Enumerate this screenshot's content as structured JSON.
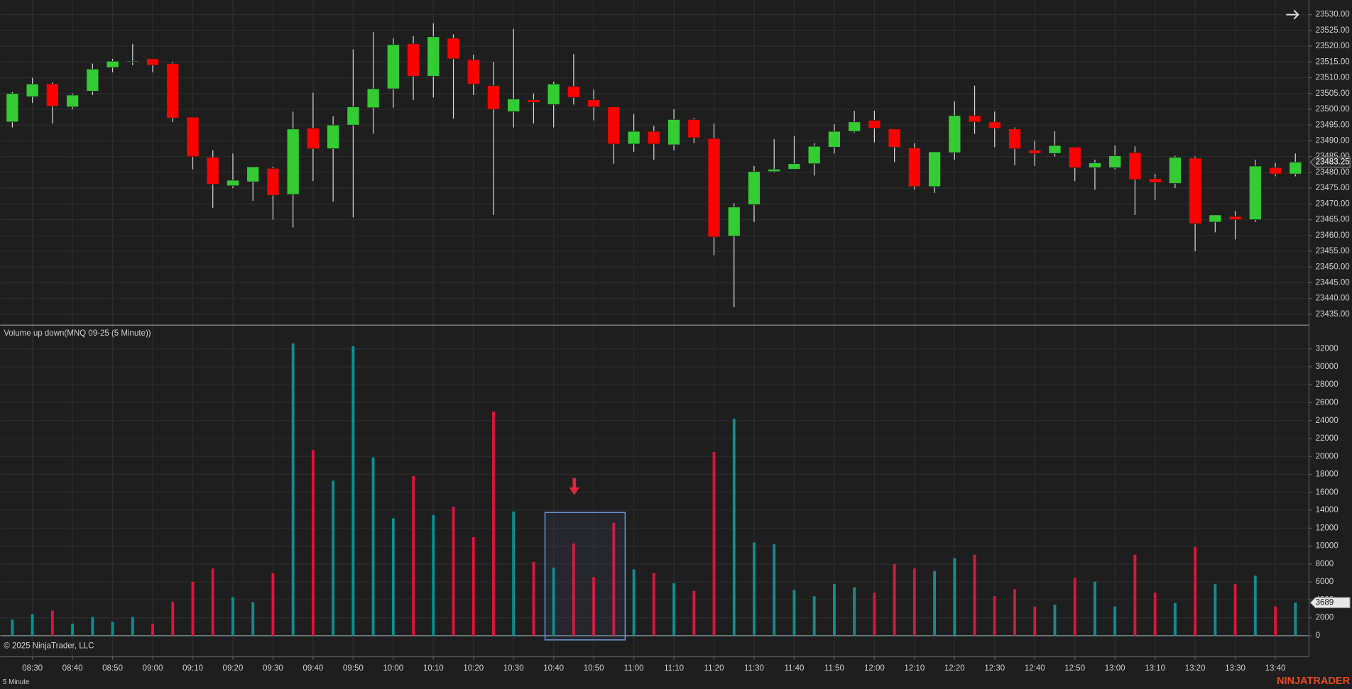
{
  "chart_data": [
    {
      "type": "candlestick",
      "categories": [
        null,
        "08:30",
        null,
        "08:40",
        null,
        "08:50",
        null,
        "09:00",
        null,
        "09:10",
        null,
        "09:20",
        null,
        "09:30",
        null,
        "09:40",
        null,
        "09:50",
        null,
        "10:00",
        null,
        "10:10",
        null,
        "10:20",
        null,
        "10:30",
        null,
        "10:40",
        null,
        "10:50",
        null,
        "11:00",
        null,
        "11:10",
        null,
        "11:20",
        null,
        "11:30",
        null,
        "11:40",
        null,
        "11:50",
        null,
        "12:00",
        null,
        "12:10",
        null,
        "12:20",
        null,
        "12:30",
        null,
        "12:40",
        null,
        "12:50",
        null,
        "13:00",
        null,
        "13:10",
        null,
        "13:20",
        null,
        "13:30",
        null,
        "13:40",
        null
      ],
      "open": [
        23496,
        23504,
        23508,
        23500.75,
        23505.75,
        23513.25,
        23515,
        23516,
        23514.5,
        23497.5,
        23484.75,
        23475.75,
        23477,
        23481.25,
        23473,
        23494,
        23487.5,
        23495,
        23500.5,
        23506.5,
        23520.75,
        23510.5,
        23522.5,
        23515.75,
        23507.5,
        23499.25,
        23503,
        23501.5,
        23507.25,
        23503,
        23500.75,
        23489,
        23493,
        23488.75,
        23496.75,
        23490.75,
        23459.75,
        23469.75,
        23480.25,
        23481,
        23482.75,
        23488,
        23493,
        23496.5,
        23493.75,
        23487.75,
        23475.5,
        23486.25,
        23498,
        23496,
        23493.75,
        23487,
        23486,
        23488,
        23481.5,
        23481.5,
        23486.25,
        23478,
        23476.5,
        23484.5,
        23464.25,
        23466,
        23465,
        23481.5,
        23479.5
      ],
      "high": [
        23505.5,
        23510,
        23508.5,
        23505,
        23514.5,
        23516,
        23520.75,
        23516,
        23515,
        23497.5,
        23487,
        23486,
        23481.75,
        23481.75,
        23499.25,
        23505.25,
        23497.75,
        23519,
        23524.5,
        23522.5,
        23523.25,
        23527.25,
        23523.75,
        23517.25,
        23515,
        23525.5,
        23505,
        23508.75,
        23517.5,
        23506.25,
        23500.75,
        23498.5,
        23494.75,
        23500,
        23497.25,
        23495.5,
        23470.25,
        23482,
        23490.5,
        23491.5,
        23489.25,
        23495.25,
        23499.5,
        23499.5,
        23493.75,
        23489.25,
        23486.5,
        23502.5,
        23507.5,
        23499.25,
        23494.25,
        23490,
        23493,
        23488,
        23484,
        23488.5,
        23488.25,
        23479.5,
        23485.25,
        23485,
        23466.5,
        23467.75,
        23484,
        23483,
        23486
      ],
      "low": [
        23494.25,
        23502,
        23495.5,
        23500,
        23504.5,
        23511.75,
        23514,
        23511.75,
        23496,
        23481,
        23468.75,
        23475,
        23471,
        23465,
        23462.5,
        23477.25,
        23470.75,
        23465.75,
        23492.25,
        23500.5,
        23503,
        23503.75,
        23497,
        23504.5,
        23466.5,
        23494.25,
        23495.5,
        23494.25,
        23501.5,
        23496.5,
        23482.75,
        23486.5,
        23484,
        23487,
        23489.25,
        23453.75,
        23437.25,
        23464.25,
        23480,
        23481,
        23479,
        23486,
        23492.5,
        23489.5,
        23483.25,
        23474.5,
        23473.5,
        23484,
        23492.25,
        23488,
        23482.25,
        23482,
        23485,
        23477.25,
        23474.5,
        23481,
        23466.5,
        23471.25,
        23475,
        23455,
        23461,
        23458.75,
        23464.25,
        23478.75,
        23478.75
      ],
      "close": [
        23505,
        23508,
        23501,
        23504.5,
        23512.75,
        23515.25,
        23515.25,
        23514,
        23497.25,
        23485,
        23476.25,
        23477.5,
        23481.75,
        23472.75,
        23493.75,
        23487.5,
        23495,
        23500.75,
        23506.5,
        23520.5,
        23510.5,
        23523,
        23516,
        23508,
        23500,
        23503.25,
        23502.25,
        23508,
        23503.75,
        23500.75,
        23489,
        23493,
        23489,
        23496.75,
        23491,
        23459.5,
        23469,
        23480.25,
        23481,
        23482.75,
        23488.25,
        23493,
        23496,
        23494,
        23488,
        23475.5,
        23486.5,
        23498,
        23496,
        23494,
        23487.5,
        23486,
        23488.5,
        23481.5,
        23483,
        23485.25,
        23477.75,
        23476.75,
        23484.75,
        23463.75,
        23466.5,
        23465,
        23482,
        23479.5,
        23483.25
      ],
      "up_color": "#33cc33",
      "down_color": "#ff0000",
      "ylim": [
        23431.7,
        23534.65
      ],
      "yticks": [
        {
          "value": 23435,
          "label": "23435.00"
        },
        {
          "value": 23440,
          "label": "23440.00"
        },
        {
          "value": 23445,
          "label": "23445.00"
        },
        {
          "value": 23450,
          "label": "23450.00"
        },
        {
          "value": 23455,
          "label": "23455.00"
        },
        {
          "value": 23460,
          "label": "23460.00"
        },
        {
          "value": 23465,
          "label": "23465.00"
        },
        {
          "value": 23470,
          "label": "23470.00"
        },
        {
          "value": 23475,
          "label": "23475.00"
        },
        {
          "value": 23480,
          "label": "23480.00"
        },
        {
          "value": 23485,
          "label": "23485.00"
        },
        {
          "value": 23490,
          "label": "23490.00"
        },
        {
          "value": 23495,
          "label": "23495.00"
        },
        {
          "value": 23500,
          "label": "23500.00"
        },
        {
          "value": 23505,
          "label": "23505.00"
        },
        {
          "value": 23510,
          "label": "23510.00"
        },
        {
          "value": 23515,
          "label": "23515.00"
        },
        {
          "value": 23520,
          "label": "23520.00"
        },
        {
          "value": 23525,
          "label": "23525.00"
        },
        {
          "value": 23530,
          "label": "23530.00"
        }
      ],
      "grid": true
    },
    {
      "type": "bar",
      "title": "Volume up down(MNQ 09-25 (5 Minute))",
      "values": [
        1800,
        2400,
        2800,
        1350,
        2100,
        1550,
        2100,
        1350,
        3800,
        6000,
        7500,
        4300,
        3750,
        7000,
        32600,
        20700,
        17300,
        32300,
        19900,
        13100,
        17800,
        13450,
        14400,
        11000,
        25000,
        13850,
        8250,
        7600,
        10300,
        6550,
        12600,
        7400,
        7000,
        5850,
        5000,
        20500,
        24200,
        10400,
        10200,
        5100,
        4400,
        5750,
        5400,
        4800,
        8000,
        7500,
        7200,
        8650,
        9050,
        4400,
        5200,
        3250,
        3450,
        6450,
        6050,
        3250,
        9050,
        4800,
        3650,
        9900,
        5750,
        5750,
        6700,
        3250,
        3689
      ],
      "up_color": "#0e8f8f",
      "down_color": "#dc143c",
      "ylim": [
        -2100,
        34600
      ],
      "yticks": [
        0,
        2000,
        4000,
        6000,
        8000,
        10000,
        12000,
        14000,
        16000,
        18000,
        20000,
        22000,
        24000,
        26000,
        28000,
        30000,
        32000
      ],
      "grid": true
    }
  ],
  "copyright": "© 2025 NinjaTrader, LLC",
  "interval": "5 Minute",
  "logo": "NINJATRADER"
}
